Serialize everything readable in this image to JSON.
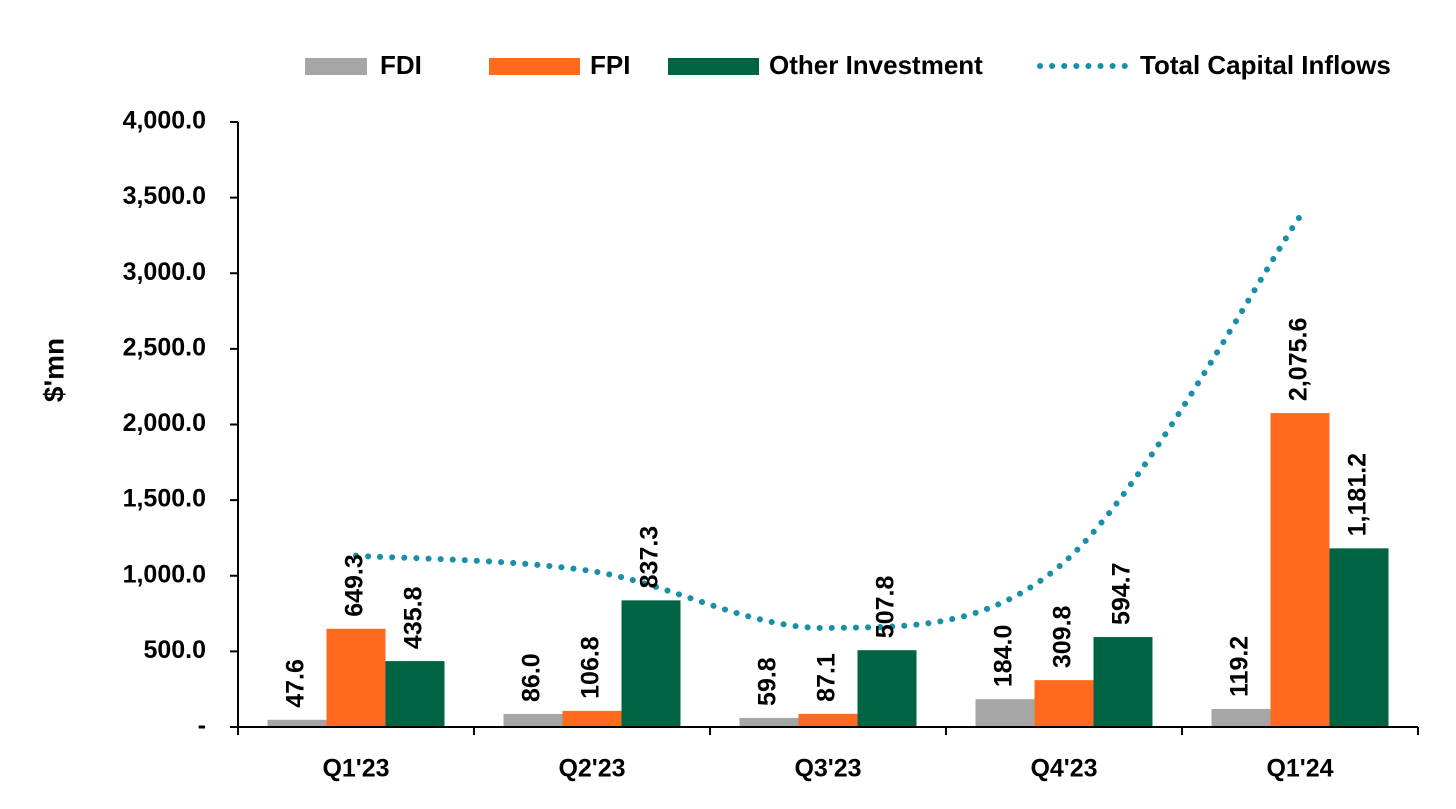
{
  "chart_data": {
    "type": "bar",
    "title": "",
    "xlabel": "",
    "ylabel": "$'mn",
    "ylim": [
      0,
      4000
    ],
    "yticks": [
      0,
      500,
      1000,
      1500,
      2000,
      2500,
      3000,
      3500,
      4000
    ],
    "ytick_labels": [
      "-",
      "500.0",
      "1,000.0",
      "1,500.0",
      "2,000.0",
      "2,500.0",
      "3,000.0",
      "3,500.0",
      "4,000.0"
    ],
    "categories": [
      "Q1'23",
      "Q2'23",
      "Q3'23",
      "Q4'23",
      "Q1'24"
    ],
    "grid": false,
    "legend_position": "top",
    "series": [
      {
        "name": "FDI",
        "type": "bar",
        "color": "#a6a6a6",
        "values": [
          47.6,
          86.0,
          59.8,
          184.0,
          119.2
        ],
        "labels": [
          "47.6",
          "86.0",
          "59.8",
          "184.0",
          "119.2"
        ]
      },
      {
        "name": "FPI",
        "type": "bar",
        "color": "#ff6a1f",
        "values": [
          649.3,
          106.8,
          87.1,
          309.8,
          2075.6
        ],
        "labels": [
          "649.3",
          "106.8",
          "87.1",
          "309.8",
          "2,075.6"
        ]
      },
      {
        "name": "Other Investment",
        "type": "bar",
        "color": "#006444",
        "values": [
          435.8,
          837.3,
          507.8,
          594.7,
          1181.2
        ],
        "labels": [
          "435.8",
          "837.3",
          "507.8",
          "594.7",
          "1,181.2"
        ]
      },
      {
        "name": "Total Capital Inflows",
        "type": "line",
        "style": "dotted",
        "color": "#1a8fa8",
        "values": [
          1132.7,
          1030.1,
          654.7,
          1088.5,
          3376.0
        ]
      }
    ]
  }
}
